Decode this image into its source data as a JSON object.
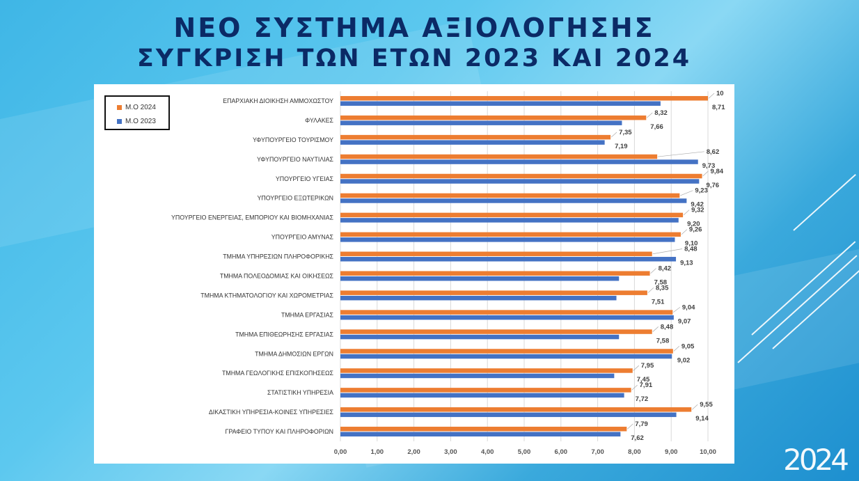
{
  "title_line1": "ΝΕΟ ΣΥΣΤΗΜΑ ΑΞΙΟΛΟΓΗΣΗΣ",
  "title_line2": "ΣΥΓΚΡΙΣΗ ΤΩΝ ΕΤΩΝ 2023 ΚΑΙ 2024",
  "year_mark": "2024",
  "colors": {
    "series2024": "#ed7d31",
    "series2023": "#4472c4",
    "title": "#0b2a66"
  },
  "chart_data": {
    "type": "bar",
    "orientation": "horizontal",
    "categories": [
      "ΕΠΑΡΧΙΑΚΗ ΔΙΟΙΚΗΣΗ ΑΜΜΟΧΩΣΤΟΥ",
      "ΦΥΛΑΚΕΣ",
      "ΥΦΥΠΟΥΡΓΕΙΟ ΤΟΥΡΙΣΜΟΥ",
      "ΥΦΥΠΟΥΡΓΕΙΟ ΝΑΥΤΙΛΙΑΣ",
      "ΥΠΟΥΡΓΕΙΟ ΥΓΕΙΑΣ",
      "ΥΠΟΥΡΓΕΙΟ ΕΞΩΤΕΡΙΚΩΝ",
      "ΥΠΟΥΡΓΕΙΟ ΕΝΕΡΓΕΙΑΣ, ΕΜΠΟΡΙΟΥ ΚΑΙ ΒΙΟΜΗΧΑΝΙΑΣ",
      "ΥΠΟΥΡΓΕΙΟ ΑΜΥΝΑΣ",
      "ΤΜΗΜΑ ΥΠΗΡΕΣΙΩΝ ΠΛΗΡΟΦΟΡΙΚΗΣ",
      "ΤΜΗΜΑ ΠΟΛΕΟΔΟΜΙΑΣ ΚΑΙ ΟΙΚΗΣΕΩΣ",
      "ΤΜΗΜΑ ΚΤΗΜΑΤΟΛΟΓΙΟΥ ΚΑΙ ΧΩΡΟΜΕΤΡΙΑΣ",
      "ΤΜΗΜΑ ΕΡΓΑΣΙΑΣ",
      "ΤΜΗΜΑ ΕΠΙΘΕΩΡΗΣΗΣ ΕΡΓΑΣΙΑΣ",
      "ΤΜΗΜΑ ΔΗΜΟΣΙΩΝ ΕΡΓΩΝ",
      "ΤΜΗΜΑ ΓΕΩΛΟΓΙΚΗΣ ΕΠΙΣΚΟΠΗΣΕΩΣ",
      "ΣΤΑΤΙΣΤΙΚΗ ΥΠΗΡΕΣΙΑ",
      "ΔΙΚΑΣΤΙΚΗ ΥΠΗΡΕΣΙΑ-ΚΟΙΝΕΣ ΥΠΗΡΕΣΙΕΣ",
      "ΓΡΑΦΕΙΟ ΤΥΠΟΥ ΚΑΙ ΠΛΗΡΟΦΟΡΙΩΝ"
    ],
    "series": [
      {
        "name": "Μ.Ο 2024",
        "color": "#ed7d31",
        "values": [
          10,
          8.32,
          7.35,
          8.62,
          9.84,
          9.23,
          9.32,
          9.26,
          8.48,
          8.42,
          8.35,
          9.04,
          8.48,
          9.05,
          7.95,
          7.91,
          9.55,
          7.79
        ],
        "labels": [
          "10",
          "8,32",
          "7,35",
          "8,62",
          "9,84",
          "9,23",
          "9,32",
          "9,26",
          "8,48",
          "8,42",
          "8,35",
          "9,04",
          "8,48",
          "9,05",
          "7,95",
          "7,91",
          "9,55",
          "7,79"
        ]
      },
      {
        "name": "Μ.Ο 2023",
        "color": "#4472c4",
        "values": [
          8.71,
          7.66,
          7.19,
          9.73,
          9.76,
          9.42,
          9.2,
          9.1,
          9.13,
          7.58,
          7.51,
          9.07,
          7.58,
          9.02,
          7.45,
          7.72,
          9.14,
          7.62
        ],
        "labels": [
          "8,71",
          "7,66",
          "7,19",
          "9,73",
          "9,76",
          "9,42",
          "9,20",
          "9,10",
          "9,13",
          "7,58",
          "7,51",
          "9,07",
          "7,58",
          "9,02",
          "7,45",
          "7,72",
          "9,14",
          "7,62"
        ]
      }
    ],
    "xlim": [
      0,
      10
    ],
    "xticks": [
      "0,00",
      "1,00",
      "2,00",
      "3,00",
      "4,00",
      "5,00",
      "6,00",
      "7,00",
      "8,00",
      "9,00",
      "10,00"
    ],
    "grid": true,
    "legend_position": "top-left"
  }
}
